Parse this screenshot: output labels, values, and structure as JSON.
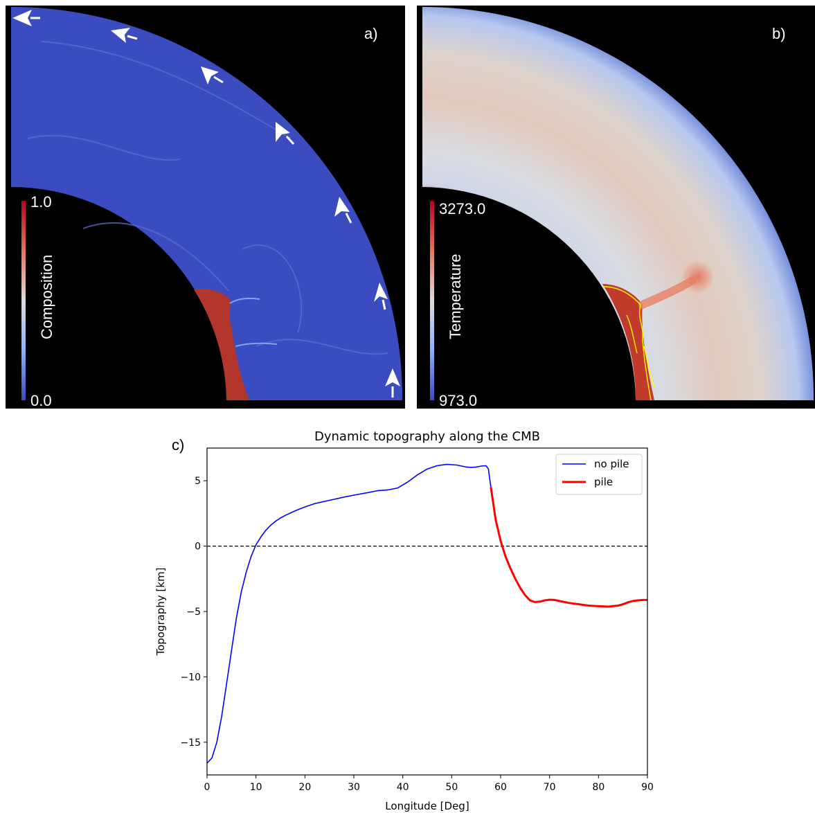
{
  "panel_a": {
    "letter": "a)",
    "colorbar": {
      "label": "Composition",
      "max_label": "1.0",
      "min_label": "0.0"
    }
  },
  "panel_b": {
    "letter": "b)",
    "colorbar": {
      "label": "Temperature",
      "max_label": "3273.0",
      "min_label": "973.0"
    }
  },
  "panel_c": {
    "letter": "c)"
  },
  "colors": {
    "mantle_blue": "#3b4cc0",
    "pile_red": "#b3362c",
    "no_pile_line": "#0000ff",
    "pile_line": "#ff0000",
    "pile_outline": "#ffff00"
  },
  "chart_data": {
    "type": "line",
    "title": "Dynamic topography along the CMB",
    "xlabel": "Longitude [Deg]",
    "ylabel": "Topography [km]",
    "xlim": [
      0,
      90
    ],
    "ylim": [
      -17.5,
      7.5
    ],
    "xticks": [
      0,
      10,
      20,
      30,
      40,
      50,
      60,
      70,
      80,
      90
    ],
    "yticks": [
      5,
      0,
      -5,
      -10,
      -15
    ],
    "ytick_labels": [
      "5",
      "0",
      "−5",
      "−10",
      "−15"
    ],
    "reference_line": {
      "y": 0,
      "style": "dashed"
    },
    "legend_position": "top-right",
    "series": [
      {
        "name": "no pile",
        "color": "#0000ff",
        "x": [
          0,
          1,
          2,
          3,
          4,
          5,
          6,
          7,
          8,
          9,
          10,
          11,
          12,
          13,
          14,
          15,
          16,
          18,
          20,
          22,
          25,
          28,
          30,
          33,
          35,
          37,
          39,
          41,
          43,
          45,
          47,
          49,
          51,
          53,
          54,
          55,
          56,
          57,
          57.5,
          58
        ],
        "y": [
          -16.6,
          -16.2,
          -15,
          -13,
          -10.5,
          -8,
          -5.5,
          -3.5,
          -2,
          -0.8,
          0.1,
          0.7,
          1.2,
          1.6,
          1.9,
          2.15,
          2.35,
          2.7,
          3.0,
          3.25,
          3.5,
          3.75,
          3.9,
          4.1,
          4.25,
          4.3,
          4.45,
          4.9,
          5.45,
          5.9,
          6.15,
          6.25,
          6.2,
          6.05,
          6.02,
          6.05,
          6.12,
          6.15,
          5.9,
          4.5
        ]
      },
      {
        "name": "pile",
        "color": "#ff0000",
        "x": [
          58,
          59,
          60,
          61,
          62,
          63,
          64,
          65,
          66,
          67,
          68,
          69,
          70,
          71,
          72,
          74,
          76,
          78,
          80,
          82,
          84,
          85,
          86,
          87,
          88,
          89,
          90
        ],
        "y": [
          4.5,
          2.0,
          0.4,
          -0.8,
          -1.7,
          -2.5,
          -3.2,
          -3.75,
          -4.15,
          -4.28,
          -4.25,
          -4.15,
          -4.1,
          -4.12,
          -4.2,
          -4.35,
          -4.45,
          -4.55,
          -4.6,
          -4.63,
          -4.55,
          -4.45,
          -4.3,
          -4.2,
          -4.15,
          -4.12,
          -4.12
        ]
      }
    ]
  }
}
